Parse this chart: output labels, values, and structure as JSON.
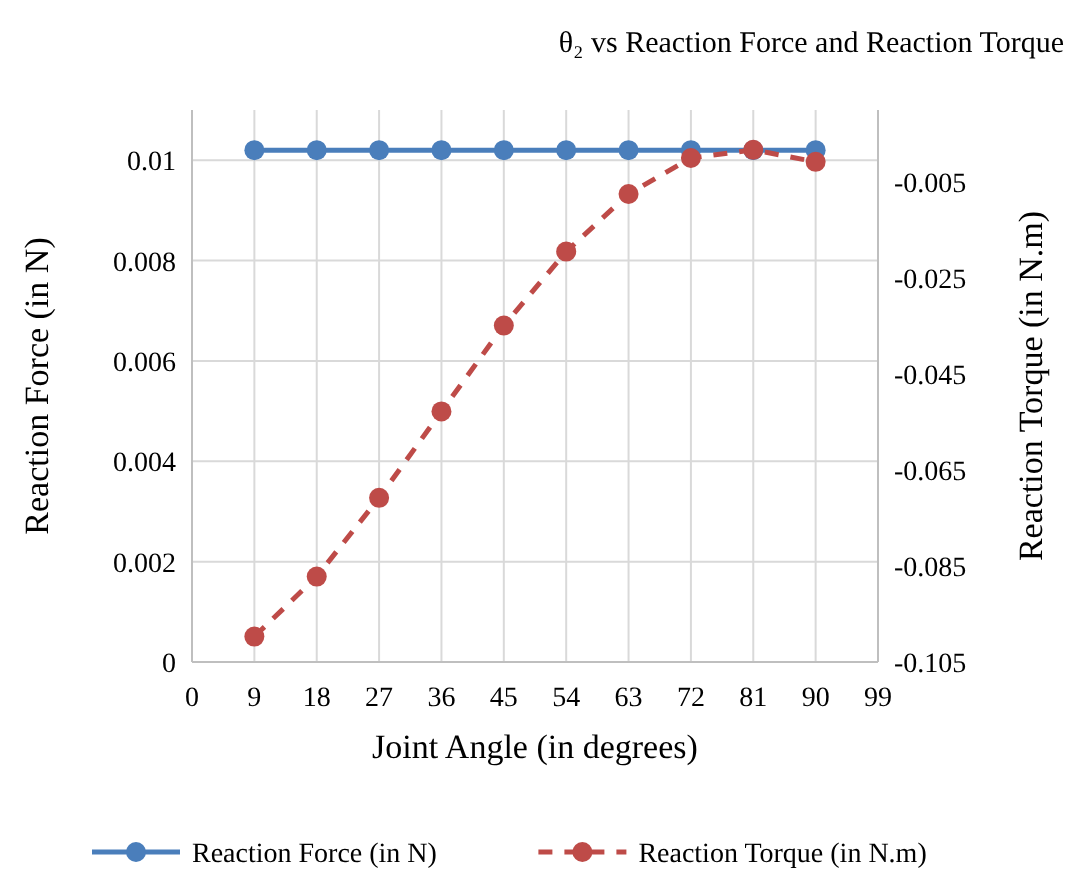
{
  "chart_data": {
    "type": "line",
    "title": "θ₂ vs Reaction Force and Reaction Torque",
    "xlabel": "Joint Angle (in degrees)",
    "ylabel": "Reaction Force (in N)",
    "y2label": "Reaction Torque (in N.m)",
    "x": [
      9,
      18,
      27,
      36,
      45,
      54,
      63,
      72,
      81,
      90
    ],
    "series": [
      {
        "name": "Reaction Force (in N)",
        "color": "#4a7ebb",
        "values": [
          0.0102,
          0.0102,
          0.0102,
          0.0102,
          0.0102,
          0.0102,
          0.0102,
          0.0102,
          0.0102,
          0.0102
        ],
        "line_style": "solid"
      },
      {
        "name": "Reaction Torque (in N.m)",
        "color": "#be4b48",
        "axis": "y2",
        "line_style": "dashed",
        "values": [
          -0.0997,
          -0.0872,
          -0.0708,
          -0.0528,
          -0.0349,
          -0.0195,
          -0.0075,
          0.0,
          0.0017,
          -0.0008
        ]
      }
    ],
    "xlim": [
      0,
      99
    ],
    "xticks": [
      0,
      9,
      18,
      27,
      36,
      45,
      54,
      63,
      72,
      81,
      90,
      99
    ],
    "ylim": [
      0,
      0.011
    ],
    "yticks": [
      0,
      0.002,
      0.004,
      0.006,
      0.008,
      0.01
    ],
    "y2lim": [
      -0.105,
      0.01
    ],
    "y2ticks": [
      -0.105,
      -0.085,
      -0.065,
      -0.045,
      -0.025,
      -0.005
    ],
    "grid": true,
    "legend": "bottom",
    "marker": "circle"
  }
}
